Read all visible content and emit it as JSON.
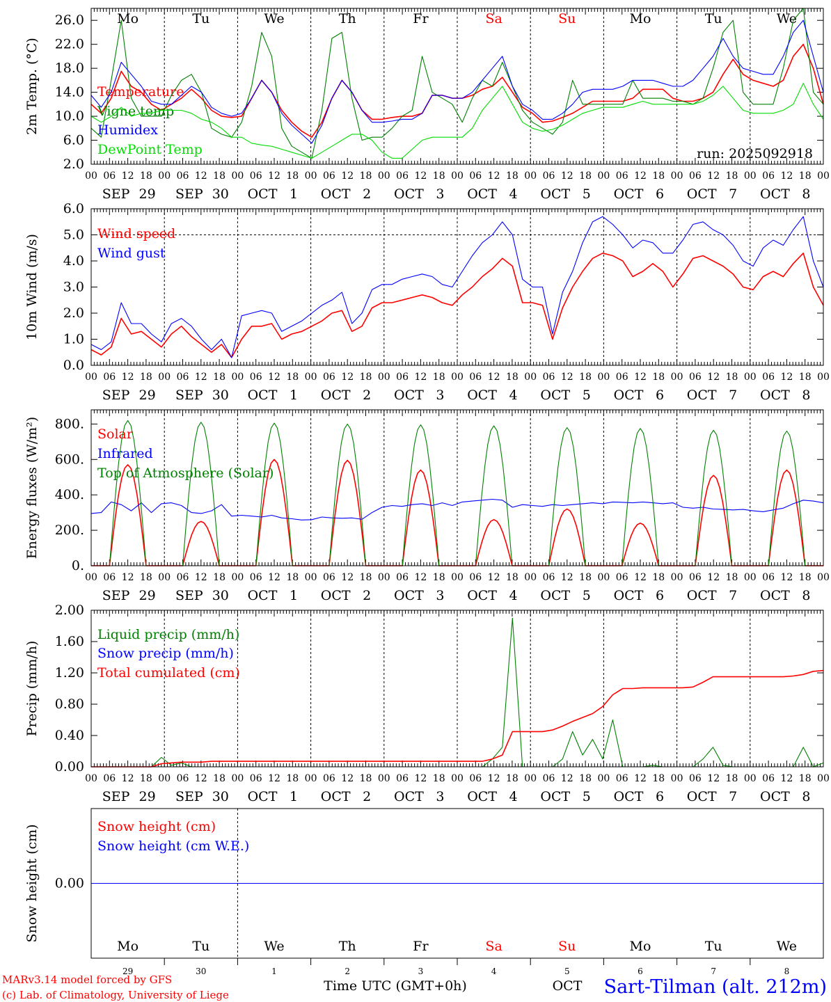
{
  "chart_data": {
    "type": "line",
    "run_label": "run: 2025092918",
    "station": "Sart-Tilman (alt. 212m)",
    "x_axis_title": "Time UTC (GMT+0h)",
    "credits": [
      "MARv3.14 model forced by GFS",
      "(c) Lab. of Climatology, University of Liege"
    ],
    "hour_ticks": [
      "00",
      "06",
      "12",
      "18"
    ],
    "dates": [
      {
        "month": "SEP",
        "day": "29"
      },
      {
        "month": "SEP",
        "day": "30"
      },
      {
        "month": "OCT",
        "day": "1"
      },
      {
        "month": "OCT",
        "day": "2"
      },
      {
        "month": "OCT",
        "day": "3"
      },
      {
        "month": "OCT",
        "day": "4"
      },
      {
        "month": "OCT",
        "day": "5"
      },
      {
        "month": "OCT",
        "day": "6"
      },
      {
        "month": "OCT",
        "day": "7"
      },
      {
        "month": "OCT",
        "day": "8"
      }
    ],
    "weekdays": [
      {
        "name": "Mo",
        "weekend": false
      },
      {
        "name": "Tu",
        "weekend": false
      },
      {
        "name": "We",
        "weekend": false
      },
      {
        "name": "Th",
        "weekend": false
      },
      {
        "name": "Fr",
        "weekend": false
      },
      {
        "name": "Sa",
        "weekend": true
      },
      {
        "name": "Su",
        "weekend": true
      },
      {
        "name": "Mo",
        "weekend": false
      },
      {
        "name": "Tu",
        "weekend": false
      },
      {
        "name": "We",
        "weekend": false
      }
    ],
    "bottom_day_numbers": [
      "29",
      "30",
      "1",
      "2",
      "3",
      "4",
      "5",
      "6",
      "7",
      "8"
    ],
    "bottom_month_label": "OCT",
    "colors": {
      "red": "#ff0000",
      "blue": "#0000ff",
      "green": "#008000",
      "lightgreen": "#00dd00",
      "grid": "#000000"
    },
    "panels": [
      {
        "ylabel": "2m Temp. (°C)",
        "ylim": [
          2.0,
          28.0
        ],
        "yticks": [
          "2.0",
          "6.0",
          "10.0",
          "14.0",
          "18.0",
          "22.0",
          "26.0"
        ],
        "ytick_values": [
          2,
          6,
          10,
          14,
          18,
          22,
          26
        ],
        "series": [
          {
            "name": "Temperature",
            "color": "#ff0000",
            "values": [
              12,
              10.5,
              13,
              17.5,
              15,
              14,
              12,
              11,
              12,
              13,
              14.5,
              13,
              11,
              10,
              9.8,
              10,
              13,
              16,
              14,
              11,
              9,
              7.5,
              6.5,
              9,
              13,
              16,
              14,
              11,
              9.5,
              9.5,
              9.8,
              10,
              10,
              10.5,
              13.5,
              13.5,
              13,
              13,
              13.5,
              14.5,
              15,
              16.5,
              14,
              11.5,
              10.5,
              9,
              9.2,
              9.8,
              10.5,
              11.5,
              12.5,
              12.5,
              12.5,
              12.5,
              13,
              14.5,
              14.5,
              14.5,
              13,
              12.5,
              12.5,
              13,
              14,
              17,
              19.5,
              17,
              16,
              15.5,
              15,
              16,
              20,
              22,
              18,
              12
            ]
          },
          {
            "name": "Vigne temp",
            "color": "#008000",
            "values": [
              8,
              6.5,
              16,
              26,
              13,
              10,
              10,
              10,
              13.5,
              16,
              17,
              14,
              8,
              7,
              6.5,
              9,
              15,
              24,
              20,
              8,
              5,
              4,
              3,
              11,
              23,
              24,
              13,
              6,
              6.5,
              6.5,
              8,
              10,
              11,
              20,
              14,
              13,
              12,
              9,
              13,
              16,
              15,
              19,
              15,
              11,
              9,
              8,
              7,
              9,
              16,
              12,
              12,
              12,
              12,
              12,
              16,
              13,
              13,
              13,
              12.5,
              12.5,
              12,
              13,
              18,
              24,
              26,
              14,
              12,
              12,
              12,
              18,
              26,
              28,
              14,
              12
            ]
          },
          {
            "name": "Humidex",
            "color": "#0000ff",
            "values": [
              13.5,
              11.5,
              14,
              19,
              17,
              15,
              12.5,
              12,
              12,
              13.5,
              15,
              14,
              11.5,
              10.5,
              10,
              10.5,
              13,
              16,
              14,
              10.5,
              8.5,
              7,
              5.5,
              8.5,
              13,
              16,
              14,
              11,
              9,
              9,
              9.2,
              9.5,
              9.5,
              10.5,
              13.5,
              13.5,
              13,
              13,
              14,
              16,
              18,
              20,
              15,
              12,
              11,
              9.5,
              9.5,
              10.5,
              12,
              14,
              14.5,
              14.5,
              14.5,
              15,
              16,
              16,
              16,
              15.5,
              15,
              15,
              16,
              18,
              20,
              23,
              20,
              18,
              17.5,
              17,
              17,
              20,
              24,
              26,
              20,
              14
            ]
          },
          {
            "name": "DewPoint Temp",
            "color": "#00dd00",
            "values": [
              10,
              9,
              10,
              11.5,
              10,
              10.5,
              10.5,
              11,
              11,
              11,
              10.5,
              9.5,
              9,
              8,
              6.5,
              6.5,
              5.5,
              5.2,
              5,
              4.5,
              4,
              3.5,
              3,
              4,
              5,
              6,
              7,
              7,
              6,
              4,
              3,
              3,
              4.5,
              6,
              6.5,
              6.5,
              6.5,
              6.5,
              8,
              11,
              13,
              15,
              12,
              9,
              8,
              7.5,
              7.8,
              8.5,
              9.5,
              10.5,
              11,
              11.5,
              11.5,
              11.5,
              12,
              12.5,
              12,
              12,
              12,
              12,
              12,
              12.5,
              13.5,
              15,
              13,
              11,
              10.5,
              10.5,
              10.5,
              11,
              12,
              15.5,
              12,
              9.5
            ]
          }
        ]
      },
      {
        "ylabel": "10m Wind (m/s)",
        "ylim": [
          0.0,
          6.0
        ],
        "yticks": [
          "0.0",
          "1.0",
          "2.0",
          "3.0",
          "4.0",
          "5.0",
          "6.0"
        ],
        "ytick_values": [
          0,
          1,
          2,
          3,
          4,
          5,
          6
        ],
        "reference_line": 5.0,
        "series": [
          {
            "name": "Wind speed",
            "color": "#ff0000",
            "values": [
              0.6,
              0.4,
              0.7,
              1.8,
              1.2,
              1.3,
              1.0,
              0.7,
              1.2,
              1.5,
              1.1,
              0.8,
              0.5,
              0.8,
              0.3,
              1.0,
              1.5,
              1.5,
              1.6,
              1.0,
              1.2,
              1.3,
              1.5,
              1.7,
              2.0,
              2.1,
              1.3,
              1.5,
              2.2,
              2.4,
              2.4,
              2.5,
              2.6,
              2.7,
              2.6,
              2.4,
              2.3,
              2.7,
              3.0,
              3.4,
              3.7,
              4.1,
              3.8,
              2.4,
              2.4,
              2.3,
              1.0,
              2.2,
              3.0,
              3.6,
              4.1,
              4.3,
              4.2,
              4.0,
              3.4,
              3.6,
              3.9,
              3.6,
              3.0,
              3.5,
              4.1,
              4.2,
              4.0,
              3.8,
              3.5,
              3.0,
              2.9,
              3.4,
              3.6,
              3.4,
              3.9,
              4.3,
              3.0,
              2.3
            ]
          },
          {
            "name": "Wind gust",
            "color": "#0000ff",
            "values": [
              0.8,
              0.6,
              0.9,
              2.4,
              1.6,
              1.6,
              1.2,
              0.9,
              1.6,
              1.8,
              1.5,
              1.0,
              0.6,
              1.0,
              0.3,
              1.9,
              2.0,
              2.1,
              2.0,
              1.3,
              1.5,
              1.7,
              2.0,
              2.3,
              2.5,
              2.8,
              1.6,
              2.0,
              2.9,
              3.1,
              3.1,
              3.3,
              3.4,
              3.5,
              3.4,
              3.1,
              3.0,
              3.6,
              4.2,
              4.7,
              5.0,
              5.5,
              5.0,
              3.3,
              3.0,
              3.0,
              1.2,
              2.8,
              3.6,
              4.7,
              5.5,
              5.7,
              5.4,
              5.0,
              4.5,
              4.8,
              4.7,
              4.3,
              4.3,
              4.8,
              5.4,
              5.5,
              5.2,
              5.0,
              4.6,
              4.0,
              3.8,
              4.5,
              4.8,
              4.6,
              5.2,
              5.7,
              4.0,
              3.0
            ]
          }
        ]
      },
      {
        "ylabel": "Energy fluxes (W/m²)",
        "ylim": [
          0,
          880
        ],
        "yticks": [
          "0.",
          "200.",
          "400.",
          "600.",
          "800."
        ],
        "ytick_values": [
          0,
          200,
          400,
          600,
          800
        ],
        "series": [
          {
            "name": "Solar",
            "color": "#ff0000",
            "peaks": [
              570,
              250,
              600,
              595,
              540,
              260,
              320,
              240,
              510,
              540
            ]
          },
          {
            "name": "Infrared",
            "color": "#0000ff",
            "values": [
              295,
              300,
              360,
              345,
              310,
              355,
              300,
              350,
              355,
              340,
              300,
              295,
              310,
              345,
              280,
              285,
              280,
              275,
              285,
              270,
              265,
              258,
              260,
              275,
              270,
              268,
              270,
              262,
              300,
              330,
              340,
              335,
              345,
              350,
              340,
              355,
              340,
              360,
              365,
              370,
              375,
              370,
              330,
              345,
              340,
              335,
              345,
              340,
              345,
              350,
              355,
              350,
              360,
              358,
              355,
              360,
              355,
              350,
              355,
              330,
              325,
              330,
              320,
              318,
              315,
              318,
              310,
              305,
              315,
              325,
              350,
              370,
              365,
              355
            ]
          },
          {
            "name": "Top of Atmosphere (Solar)",
            "color": "#008000",
            "peaks": [
              820,
              810,
              805,
              800,
              795,
              790,
              780,
              775,
              765,
              760
            ]
          }
        ]
      },
      {
        "ylabel": "Precip (mm/h)",
        "ylim": [
          0.0,
          2.0
        ],
        "yticks": [
          "0.00",
          "0.40",
          "0.80",
          "1.20",
          "1.60",
          "2.00"
        ],
        "ytick_values": [
          0,
          0.4,
          0.8,
          1.2,
          1.6,
          2.0
        ],
        "series": [
          {
            "name": "Liquid precip (mm/h)",
            "color": "#008000",
            "values": [
              0,
              0,
              0,
              0,
              0,
              0,
              0,
              0.12,
              0.02,
              0.05,
              0,
              0,
              0,
              0,
              0,
              0,
              0,
              0,
              0,
              0,
              0,
              0,
              0,
              0,
              0,
              0,
              0,
              0,
              0,
              0,
              0,
              0,
              0,
              0,
              0,
              0,
              0,
              0,
              0,
              0,
              0.1,
              0.25,
              1.9,
              0,
              0,
              0,
              0,
              0.1,
              0.45,
              0.15,
              0.35,
              0.1,
              0.6,
              0,
              0,
              0,
              0.02,
              0,
              0,
              0,
              0,
              0.1,
              0.25,
              0.02,
              0,
              0,
              0,
              0,
              0,
              0,
              0,
              0.25,
              0,
              0.05
            ]
          },
          {
            "name": "Snow precip (mm/h)",
            "color": "#0000ff",
            "values": [
              0,
              0,
              0,
              0,
              0,
              0,
              0,
              0,
              0,
              0,
              0,
              0,
              0,
              0,
              0,
              0,
              0,
              0,
              0,
              0,
              0,
              0,
              0,
              0,
              0,
              0,
              0,
              0,
              0,
              0,
              0,
              0,
              0,
              0,
              0,
              0,
              0,
              0,
              0,
              0,
              0,
              0,
              0,
              0,
              0,
              0,
              0,
              0,
              0,
              0,
              0,
              0,
              0,
              0,
              0,
              0,
              0,
              0,
              0,
              0,
              0,
              0,
              0,
              0,
              0,
              0,
              0,
              0,
              0,
              0,
              0,
              0,
              0,
              0
            ]
          },
          {
            "name": "Total cumulated (cm)",
            "color": "#ff0000",
            "values": [
              0,
              0,
              0,
              0,
              0,
              0,
              0,
              0.04,
              0.05,
              0.06,
              0.06,
              0.06,
              0.07,
              0.07,
              0.07,
              0.07,
              0.07,
              0.07,
              0.07,
              0.07,
              0.07,
              0.07,
              0.07,
              0.07,
              0.07,
              0.07,
              0.07,
              0.07,
              0.07,
              0.07,
              0.07,
              0.07,
              0.07,
              0.07,
              0.07,
              0.07,
              0.07,
              0.07,
              0.07,
              0.07,
              0.1,
              0.15,
              0.45,
              0.45,
              0.45,
              0.45,
              0.47,
              0.52,
              0.58,
              0.63,
              0.68,
              0.77,
              0.92,
              1.0,
              1.0,
              1.01,
              1.01,
              1.01,
              1.01,
              1.01,
              1.02,
              1.08,
              1.15,
              1.15,
              1.15,
              1.15,
              1.15,
              1.15,
              1.15,
              1.15,
              1.16,
              1.18,
              1.22,
              1.23
            ]
          }
        ]
      },
      {
        "ylabel": "Snow height (cm)",
        "ylim": [
          -1,
          1
        ],
        "yticks": [
          "0.00"
        ],
        "ytick_values": [
          0
        ],
        "series": [
          {
            "name": "Snow height (cm)",
            "color": "#ff0000",
            "values": [
              0,
              0
            ]
          },
          {
            "name": "Snow height (cm W.E.)",
            "color": "#0000ff",
            "values": [
              0,
              0
            ]
          }
        ]
      }
    ]
  }
}
